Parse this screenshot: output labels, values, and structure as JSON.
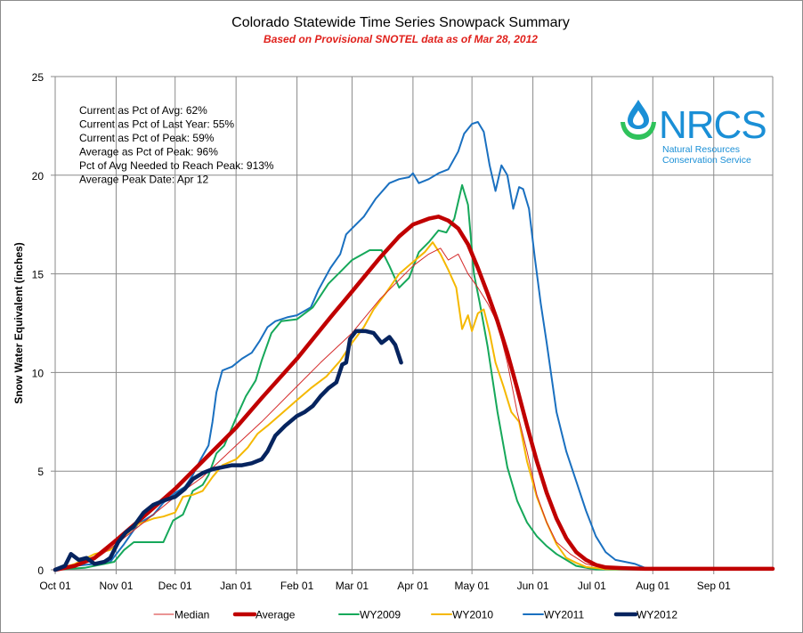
{
  "chart_data": {
    "type": "line",
    "title": "Colorado Statewide Time Series Snowpack Summary",
    "subtitle": "Based on Provisional SNOTEL data as of Mar 28, 2012",
    "xlabel": "",
    "ylabel": "Snow Water Equivalent (inches)",
    "x_unit": "day of water year (0 = Oct 01)",
    "xlim": [
      0,
      365
    ],
    "ylim": [
      0,
      25
    ],
    "grid": true,
    "legend_position": "bottom",
    "y_ticks": [
      0,
      5,
      10,
      15,
      20,
      25
    ],
    "x_ticks": [
      {
        "day": 0,
        "label": "Oct 01"
      },
      {
        "day": 31,
        "label": "Nov 01"
      },
      {
        "day": 61,
        "label": "Dec 01"
      },
      {
        "day": 92,
        "label": "Jan 01"
      },
      {
        "day": 123,
        "label": "Feb 01"
      },
      {
        "day": 151,
        "label": "Mar 01"
      },
      {
        "day": 182,
        "label": "Apr 01"
      },
      {
        "day": 212,
        "label": "May 01"
      },
      {
        "day": 243,
        "label": "Jun 01"
      },
      {
        "day": 273,
        "label": "Jul 01"
      },
      {
        "day": 304,
        "label": "Aug 01"
      },
      {
        "day": 335,
        "label": "Sep 01"
      }
    ],
    "annotations": [
      "Current as Pct of Avg: 62%",
      "Current as Pct of Last Year: 55%",
      "Current as Pct of Peak: 59%",
      "Average as Pct of Peak: 96%",
      "Pct of Avg Needed to Reach Peak: 913%",
      "Average Peak Date: Apr 12"
    ],
    "series": [
      {
        "name": "Median",
        "color": "#d42a2a",
        "weight": "thin",
        "points": [
          [
            0,
            0
          ],
          [
            10,
            0.2
          ],
          [
            20,
            0.5
          ],
          [
            31,
            1.3
          ],
          [
            45,
            2.4
          ],
          [
            61,
            3.7
          ],
          [
            75,
            4.7
          ],
          [
            92,
            6.3
          ],
          [
            105,
            7.5
          ],
          [
            123,
            9.3
          ],
          [
            135,
            10.5
          ],
          [
            151,
            12.0
          ],
          [
            165,
            13.7
          ],
          [
            182,
            15.4
          ],
          [
            190,
            16.0
          ],
          [
            196,
            16.3
          ],
          [
            200,
            15.7
          ],
          [
            205,
            16.0
          ],
          [
            210,
            15.0
          ],
          [
            215,
            14.3
          ],
          [
            220,
            13.5
          ],
          [
            225,
            12.5
          ],
          [
            230,
            10.5
          ],
          [
            235,
            8.0
          ],
          [
            240,
            6.0
          ],
          [
            245,
            3.8
          ],
          [
            250,
            2.4
          ],
          [
            255,
            1.4
          ],
          [
            262,
            0.8
          ],
          [
            270,
            0.3
          ],
          [
            280,
            0.05
          ],
          [
            290,
            0
          ],
          [
            365,
            0
          ]
        ]
      },
      {
        "name": "Average",
        "color": "#c00000",
        "weight": "heavy",
        "points": [
          [
            0,
            0
          ],
          [
            10,
            0.2
          ],
          [
            20,
            0.6
          ],
          [
            31,
            1.5
          ],
          [
            45,
            2.7
          ],
          [
            61,
            4.1
          ],
          [
            75,
            5.5
          ],
          [
            92,
            7.2
          ],
          [
            105,
            8.7
          ],
          [
            123,
            10.7
          ],
          [
            140,
            12.8
          ],
          [
            151,
            14.1
          ],
          [
            165,
            15.8
          ],
          [
            175,
            16.9
          ],
          [
            182,
            17.5
          ],
          [
            190,
            17.8
          ],
          [
            195,
            17.9
          ],
          [
            200,
            17.7
          ],
          [
            205,
            17.3
          ],
          [
            210,
            16.5
          ],
          [
            215,
            15.3
          ],
          [
            220,
            14.0
          ],
          [
            225,
            12.6
          ],
          [
            230,
            11.0
          ],
          [
            235,
            9.2
          ],
          [
            240,
            7.3
          ],
          [
            245,
            5.5
          ],
          [
            250,
            3.9
          ],
          [
            255,
            2.6
          ],
          [
            260,
            1.6
          ],
          [
            265,
            0.9
          ],
          [
            270,
            0.5
          ],
          [
            275,
            0.25
          ],
          [
            280,
            0.12
          ],
          [
            290,
            0.08
          ],
          [
            300,
            0.05
          ],
          [
            365,
            0.05
          ]
        ]
      },
      {
        "name": "WY2009",
        "color": "#16a85a",
        "weight": "normal",
        "points": [
          [
            0,
            0
          ],
          [
            15,
            0.1
          ],
          [
            25,
            0.3
          ],
          [
            30,
            0.4
          ],
          [
            35,
            1.0
          ],
          [
            40,
            1.4
          ],
          [
            55,
            1.4
          ],
          [
            60,
            2.5
          ],
          [
            65,
            2.8
          ],
          [
            70,
            4.0
          ],
          [
            75,
            4.3
          ],
          [
            78,
            4.8
          ],
          [
            82,
            5.9
          ],
          [
            86,
            6.3
          ],
          [
            92,
            7.7
          ],
          [
            97,
            8.8
          ],
          [
            102,
            9.6
          ],
          [
            105,
            10.6
          ],
          [
            110,
            12.0
          ],
          [
            115,
            12.6
          ],
          [
            123,
            12.7
          ],
          [
            131,
            13.3
          ],
          [
            139,
            14.5
          ],
          [
            145,
            15.1
          ],
          [
            151,
            15.7
          ],
          [
            160,
            16.2
          ],
          [
            166,
            16.2
          ],
          [
            170,
            15.4
          ],
          [
            175,
            14.3
          ],
          [
            180,
            14.8
          ],
          [
            185,
            16.1
          ],
          [
            190,
            16.6
          ],
          [
            195,
            17.2
          ],
          [
            199,
            17.1
          ],
          [
            203,
            17.8
          ],
          [
            207,
            19.5
          ],
          [
            210,
            18.5
          ],
          [
            213,
            15.0
          ],
          [
            216,
            13.5
          ],
          [
            220,
            11.3
          ],
          [
            225,
            8.0
          ],
          [
            230,
            5.2
          ],
          [
            235,
            3.5
          ],
          [
            240,
            2.4
          ],
          [
            245,
            1.7
          ],
          [
            250,
            1.2
          ],
          [
            255,
            0.8
          ],
          [
            260,
            0.5
          ],
          [
            265,
            0.2
          ],
          [
            275,
            0.02
          ],
          [
            365,
            0
          ]
        ]
      },
      {
        "name": "WY2010",
        "color": "#f5b800",
        "weight": "normal",
        "points": [
          [
            0,
            0
          ],
          [
            10,
            0.3
          ],
          [
            20,
            0.8
          ],
          [
            28,
            1.0
          ],
          [
            35,
            1.7
          ],
          [
            42,
            2.3
          ],
          [
            50,
            2.6
          ],
          [
            55,
            2.7
          ],
          [
            61,
            2.9
          ],
          [
            65,
            3.7
          ],
          [
            70,
            3.8
          ],
          [
            75,
            4.0
          ],
          [
            80,
            4.7
          ],
          [
            85,
            5.3
          ],
          [
            92,
            5.6
          ],
          [
            98,
            6.2
          ],
          [
            103,
            6.9
          ],
          [
            108,
            7.3
          ],
          [
            115,
            7.9
          ],
          [
            123,
            8.6
          ],
          [
            130,
            9.2
          ],
          [
            138,
            9.8
          ],
          [
            145,
            10.6
          ],
          [
            151,
            11.5
          ],
          [
            157,
            12.3
          ],
          [
            162,
            13.2
          ],
          [
            168,
            14.0
          ],
          [
            175,
            15.0
          ],
          [
            182,
            15.6
          ],
          [
            188,
            16.1
          ],
          [
            192,
            16.6
          ],
          [
            196,
            16.0
          ],
          [
            200,
            15.2
          ],
          [
            204,
            14.3
          ],
          [
            207,
            12.2
          ],
          [
            210,
            12.9
          ],
          [
            212,
            12.1
          ],
          [
            215,
            13.0
          ],
          [
            218,
            13.2
          ],
          [
            221,
            12.0
          ],
          [
            224,
            10.5
          ],
          [
            228,
            9.3
          ],
          [
            232,
            8.0
          ],
          [
            236,
            7.5
          ],
          [
            240,
            5.5
          ],
          [
            245,
            3.7
          ],
          [
            250,
            2.4
          ],
          [
            255,
            1.3
          ],
          [
            260,
            0.6
          ],
          [
            265,
            0.35
          ],
          [
            270,
            0.15
          ],
          [
            280,
            0.03
          ],
          [
            365,
            0
          ]
        ]
      },
      {
        "name": "WY2011",
        "color": "#1a70c0",
        "weight": "normal",
        "points": [
          [
            0,
            0
          ],
          [
            10,
            0.2
          ],
          [
            20,
            0.3
          ],
          [
            28,
            0.4
          ],
          [
            35,
            1.3
          ],
          [
            42,
            2.3
          ],
          [
            50,
            2.8
          ],
          [
            55,
            3.4
          ],
          [
            61,
            3.9
          ],
          [
            66,
            4.2
          ],
          [
            70,
            4.8
          ],
          [
            74,
            5.6
          ],
          [
            78,
            6.3
          ],
          [
            80,
            7.5
          ],
          [
            82,
            9.0
          ],
          [
            85,
            10.1
          ],
          [
            90,
            10.3
          ],
          [
            95,
            10.7
          ],
          [
            100,
            11.0
          ],
          [
            104,
            11.6
          ],
          [
            108,
            12.3
          ],
          [
            112,
            12.6
          ],
          [
            118,
            12.8
          ],
          [
            123,
            12.9
          ],
          [
            130,
            13.3
          ],
          [
            134,
            14.2
          ],
          [
            140,
            15.3
          ],
          [
            145,
            16.0
          ],
          [
            148,
            17.0
          ],
          [
            151,
            17.3
          ],
          [
            157,
            17.9
          ],
          [
            163,
            18.8
          ],
          [
            170,
            19.6
          ],
          [
            175,
            19.8
          ],
          [
            180,
            19.9
          ],
          [
            182,
            20.1
          ],
          [
            185,
            19.6
          ],
          [
            190,
            19.8
          ],
          [
            195,
            20.1
          ],
          [
            200,
            20.3
          ],
          [
            205,
            21.2
          ],
          [
            208,
            22.1
          ],
          [
            212,
            22.6
          ],
          [
            215,
            22.7
          ],
          [
            218,
            22.2
          ],
          [
            221,
            20.5
          ],
          [
            224,
            19.2
          ],
          [
            227,
            20.5
          ],
          [
            230,
            20.0
          ],
          [
            233,
            18.3
          ],
          [
            236,
            19.4
          ],
          [
            238,
            19.3
          ],
          [
            241,
            18.3
          ],
          [
            244,
            15.8
          ],
          [
            247,
            13.5
          ],
          [
            250,
            11.5
          ],
          [
            255,
            8.0
          ],
          [
            260,
            6.0
          ],
          [
            265,
            4.5
          ],
          [
            270,
            3.0
          ],
          [
            275,
            1.7
          ],
          [
            280,
            0.9
          ],
          [
            285,
            0.5
          ],
          [
            290,
            0.4
          ],
          [
            295,
            0.3
          ],
          [
            300,
            0.1
          ],
          [
            305,
            0.05
          ],
          [
            365,
            0
          ]
        ]
      },
      {
        "name": "WY2012",
        "color": "#06245f",
        "weight": "heavy",
        "points": [
          [
            0,
            0
          ],
          [
            5,
            0.2
          ],
          [
            8,
            0.8
          ],
          [
            12,
            0.5
          ],
          [
            16,
            0.6
          ],
          [
            20,
            0.3
          ],
          [
            25,
            0.4
          ],
          [
            28,
            0.6
          ],
          [
            32,
            1.4
          ],
          [
            36,
            1.9
          ],
          [
            40,
            2.2
          ],
          [
            45,
            2.9
          ],
          [
            50,
            3.3
          ],
          [
            55,
            3.5
          ],
          [
            61,
            3.7
          ],
          [
            66,
            4.1
          ],
          [
            70,
            4.6
          ],
          [
            75,
            4.9
          ],
          [
            80,
            5.1
          ],
          [
            85,
            5.2
          ],
          [
            90,
            5.3
          ],
          [
            95,
            5.3
          ],
          [
            100,
            5.4
          ],
          [
            105,
            5.6
          ],
          [
            108,
            6.0
          ],
          [
            112,
            6.8
          ],
          [
            117,
            7.3
          ],
          [
            123,
            7.8
          ],
          [
            127,
            8.0
          ],
          [
            131,
            8.3
          ],
          [
            135,
            8.8
          ],
          [
            139,
            9.2
          ],
          [
            143,
            9.5
          ],
          [
            146,
            10.4
          ],
          [
            148,
            10.5
          ],
          [
            150,
            11.7
          ],
          [
            153,
            12.1
          ],
          [
            158,
            12.1
          ],
          [
            162,
            12.0
          ],
          [
            166,
            11.5
          ],
          [
            170,
            11.8
          ],
          [
            173,
            11.4
          ],
          [
            176,
            10.5
          ]
        ]
      }
    ]
  },
  "logo": {
    "name": "NRCS",
    "line1": "Natural Resources",
    "line2": "Conservation Service"
  }
}
